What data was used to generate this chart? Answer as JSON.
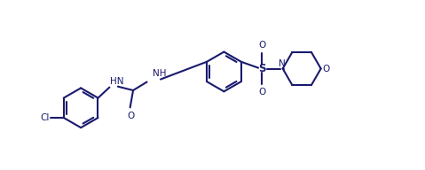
{
  "bg_color": "#ffffff",
  "line_color": "#1a1a6e",
  "lw": 1.5,
  "fs": 7.5,
  "figsize": [
    4.79,
    1.92
  ],
  "dpi": 100,
  "xlim": [
    -0.5,
    10.5
  ],
  "ylim": [
    -0.2,
    4.2
  ]
}
